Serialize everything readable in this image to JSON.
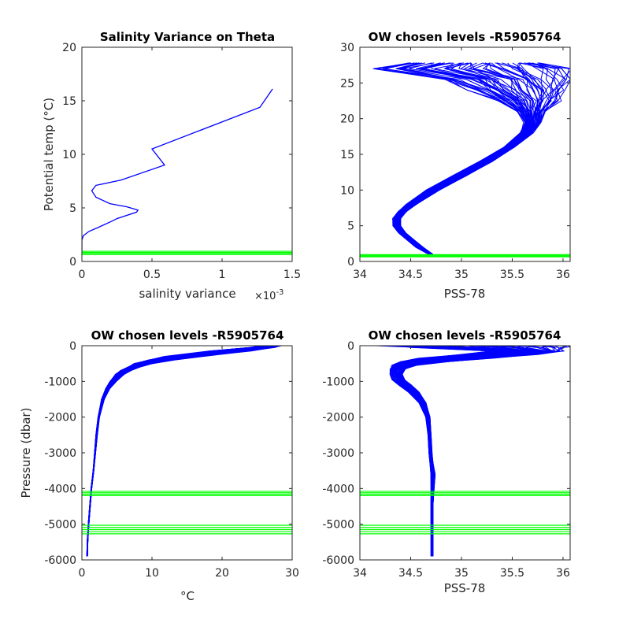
{
  "chart_data": [
    {
      "id": "p1",
      "type": "line",
      "title": "Salinity Variance on Theta",
      "xlabel": "salinity variance",
      "x_exponent_label": "×10",
      "x_exponent_power": "-3",
      "ylabel": "Potential temp (°C)",
      "xlim": [
        0,
        1.5
      ],
      "ylim": [
        0,
        20
      ],
      "x_ticks": [
        0,
        0.5,
        1,
        1.5
      ],
      "x_tick_labels": [
        "0",
        "0.5",
        "1",
        "1.5"
      ],
      "y_ticks": [
        0,
        5,
        10,
        15,
        20
      ],
      "y_tick_labels": [
        "0",
        "5",
        "10",
        "15",
        "20"
      ],
      "colors": {
        "profile": "#0000ff",
        "levels": "#00ff00"
      },
      "series": [
        {
          "color": "#0000ff",
          "x": [
            1.36,
            1.27,
            0.5,
            0.59,
            0.28,
            0.1,
            0.07,
            0.1,
            0.2,
            0.32,
            0.4,
            0.39,
            0.25,
            0.22,
            0.12,
            0.05,
            0.01,
            0.0,
            0.0
          ],
          "y": [
            16.1,
            14.4,
            10.5,
            9.0,
            7.6,
            7.1,
            6.6,
            6.0,
            5.4,
            5.1,
            4.8,
            4.6,
            4.0,
            3.8,
            3.2,
            2.8,
            2.4,
            2.0,
            0.8
          ]
        }
      ],
      "hlines": [
        0.65,
        0.75,
        0.85,
        0.95
      ]
    },
    {
      "id": "p2",
      "type": "line",
      "title": "OW chosen levels -R5905764",
      "xlabel": "PSS-78",
      "ylabel": "",
      "xlim": [
        34,
        36.07
      ],
      "ylim": [
        0,
        30
      ],
      "x_ticks": [
        34,
        34.5,
        35,
        35.5,
        36
      ],
      "x_tick_labels": [
        "34",
        "34.5",
        "35",
        "35.5",
        "36"
      ],
      "y_ticks": [
        0,
        5,
        10,
        15,
        20,
        25,
        30
      ],
      "y_tick_labels": [
        "0",
        "5",
        "10",
        "15",
        "20",
        "25",
        "30"
      ],
      "colors": {
        "profile": "#0000ff",
        "levels": "#00ff00"
      },
      "profile_envelope": {
        "color": "#0000ff",
        "y": [
          1.0,
          2.0,
          4.0,
          5.0,
          6.0,
          7.0,
          8.0,
          10.0,
          12.0,
          14.0,
          16.0,
          18.0,
          19.5,
          21.0,
          22.5,
          24.0,
          25.5,
          27.0,
          27.8
        ],
        "x_left": [
          34.68,
          34.55,
          34.38,
          34.33,
          34.32,
          34.38,
          34.46,
          34.66,
          34.92,
          35.18,
          35.42,
          35.58,
          35.62,
          35.55,
          35.35,
          35.1,
          34.85,
          34.2,
          34.5
        ],
        "x_right": [
          34.72,
          34.62,
          34.45,
          34.4,
          34.4,
          34.46,
          34.56,
          34.78,
          35.05,
          35.3,
          35.52,
          35.7,
          35.78,
          35.82,
          35.95,
          36.02,
          36.07,
          36.07,
          35.8
        ]
      },
      "hlines": [
        0.65,
        0.75,
        0.85,
        0.95
      ]
    },
    {
      "id": "p3",
      "type": "line",
      "title": "OW chosen levels -R5905764",
      "xlabel": "°C",
      "ylabel": "Pressure (dbar)",
      "xlim": [
        0,
        30
      ],
      "ylim": [
        -6000,
        0
      ],
      "x_ticks": [
        0,
        10,
        20,
        30
      ],
      "x_tick_labels": [
        "0",
        "10",
        "20",
        "30"
      ],
      "y_ticks": [
        -6000,
        -5000,
        -4000,
        -3000,
        -2000,
        -1000,
        0
      ],
      "y_tick_labels": [
        "-6000",
        "-5000",
        "-4000",
        "-3000",
        "-2000",
        "-1000",
        "0"
      ],
      "colors": {
        "profile": "#0000ff",
        "levels": "#00ff00"
      },
      "profile_envelope": {
        "color": "#0000ff",
        "y": [
          0,
          -50,
          -150,
          -300,
          -400,
          -500,
          -600,
          -700,
          -800,
          -1000,
          -1200,
          -1500,
          -2000,
          -2500,
          -3000,
          -3500,
          -4000,
          -4500,
          -5000,
          -5500,
          -5900
        ],
        "x_left": [
          25.5,
          24.0,
          18.0,
          12.0,
          9.5,
          7.5,
          6.5,
          5.5,
          4.8,
          4.0,
          3.4,
          2.8,
          2.3,
          2.0,
          1.8,
          1.6,
          1.3,
          1.1,
          0.9,
          0.75,
          0.7
        ],
        "x_right": [
          28.5,
          27.5,
          24.0,
          17.0,
          13.0,
          10.0,
          8.2,
          7.0,
          6.0,
          4.9,
          4.0,
          3.2,
          2.5,
          2.2,
          1.95,
          1.7,
          1.4,
          1.2,
          1.0,
          0.85,
          0.8
        ]
      },
      "hlines": [
        -4080,
        -4120,
        -4160,
        -4200,
        -5030,
        -5090,
        -5150,
        -5210,
        -5270
      ]
    },
    {
      "id": "p4",
      "type": "line",
      "title": "OW chosen levels -R5905764",
      "xlabel": "PSS-78",
      "ylabel": "",
      "xlim": [
        34,
        36.07
      ],
      "ylim": [
        -6000,
        0
      ],
      "x_ticks": [
        34,
        34.5,
        35,
        35.5,
        36
      ],
      "x_tick_labels": [
        "34",
        "34.5",
        "35",
        "35.5",
        "36"
      ],
      "y_ticks": [
        -6000,
        -5000,
        -4000,
        -3000,
        -2000,
        -1000,
        0
      ],
      "y_tick_labels": [
        "-6000",
        "-5000",
        "-4000",
        "-3000",
        "-2000",
        "-1000",
        "0"
      ],
      "colors": {
        "profile": "#0000ff",
        "levels": "#00ff00"
      },
      "profile_envelope": {
        "color": "#0000ff",
        "y": [
          0,
          -50,
          -150,
          -250,
          -350,
          -450,
          -550,
          -650,
          -800,
          -950,
          -1100,
          -1300,
          -1600,
          -2000,
          -2500,
          -3000,
          -3300,
          -3600,
          -4000,
          -4500,
          -5000,
          -5500,
          -5900
        ],
        "x_left": [
          34.2,
          34.5,
          35.3,
          35.0,
          34.6,
          34.4,
          34.32,
          34.3,
          34.3,
          34.32,
          34.38,
          34.48,
          34.58,
          34.65,
          34.67,
          34.68,
          34.69,
          34.7,
          34.7,
          34.7,
          34.7,
          34.7,
          34.7
        ],
        "x_right": [
          36.07,
          36.05,
          36.0,
          35.75,
          35.3,
          34.85,
          34.55,
          34.45,
          34.42,
          34.44,
          34.5,
          34.58,
          34.65,
          34.69,
          34.7,
          34.71,
          34.72,
          34.74,
          34.73,
          34.72,
          34.72,
          34.72,
          34.72
        ]
      },
      "hlines": [
        -4080,
        -4120,
        -4160,
        -4200,
        -5030,
        -5090,
        -5150,
        -5210,
        -5270
      ]
    }
  ]
}
